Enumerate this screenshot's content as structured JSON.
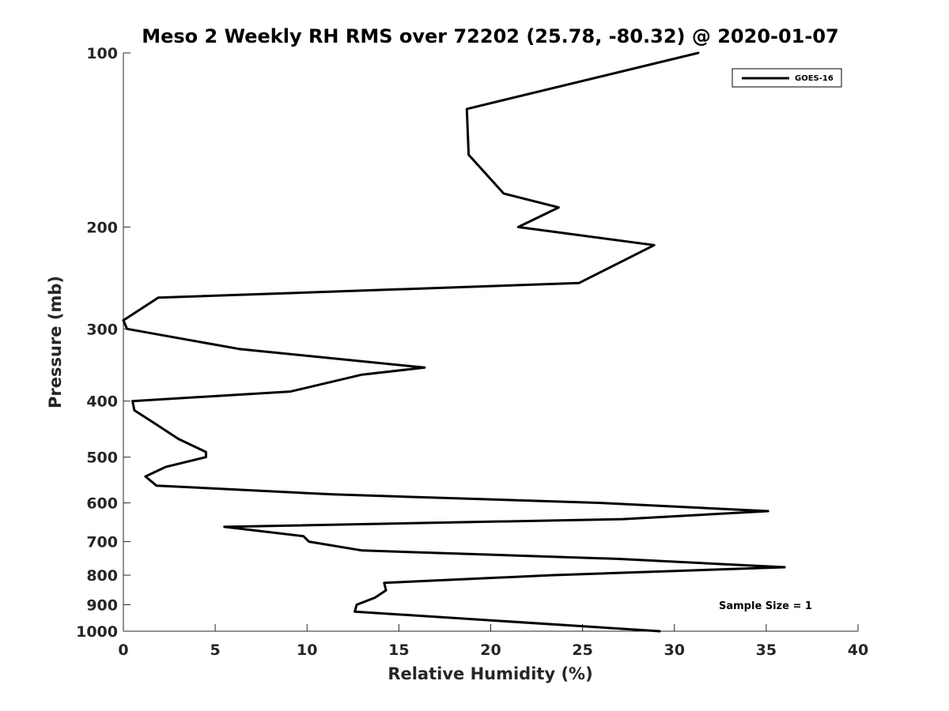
{
  "chart_data": {
    "type": "line",
    "title": "Meso 2 Weekly RH RMS over 72202 (25.78, -80.32) @ 2020-01-07",
    "xlabel": "Relative Humidity (%)",
    "ylabel": "Pressure (mb)",
    "xlim": [
      0,
      40
    ],
    "ylim": [
      100,
      1000
    ],
    "y_scale": "log",
    "y_reversed": true,
    "x_ticks": [
      0,
      5,
      10,
      15,
      20,
      25,
      30,
      35,
      40
    ],
    "y_ticks": [
      100,
      200,
      300,
      400,
      500,
      600,
      700,
      800,
      900,
      1000
    ],
    "grid": false,
    "legend_position": "top-right",
    "series": [
      {
        "name": "GOES-16",
        "color": "#000000",
        "x": [
          31.3,
          18.7,
          18.8,
          20.7,
          23.7,
          21.5,
          28.9,
          24.8,
          1.9,
          0.0,
          0.2,
          6.3,
          16.4,
          13.0,
          9.1,
          0.5,
          0.6,
          1.6,
          3.0,
          4.5,
          4.5,
          2.3,
          1.2,
          1.8,
          11.4,
          26.0,
          35.1,
          27.2,
          5.5,
          9.8,
          10.1,
          13.0,
          27.0,
          36.0,
          23.3,
          14.2,
          14.3,
          13.7,
          12.7,
          12.6,
          29.2
        ],
        "y": [
          100,
          125,
          150,
          175,
          185,
          200,
          215,
          250,
          265,
          290,
          300,
          325,
          350,
          360,
          385,
          400,
          415,
          435,
          465,
          490,
          500,
          520,
          540,
          560,
          580,
          600,
          620,
          640,
          660,
          685,
          700,
          725,
          750,
          775,
          800,
          825,
          850,
          875,
          900,
          925,
          1000
        ]
      }
    ],
    "annotation": "Sample Size = 1"
  }
}
